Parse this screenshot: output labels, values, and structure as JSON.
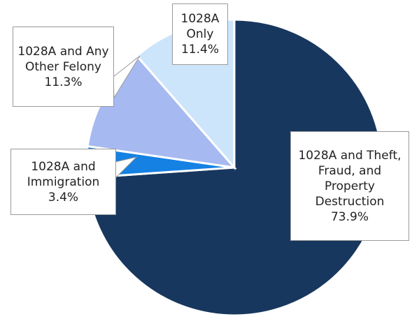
{
  "chart_data": {
    "type": "pie",
    "categories": [
      "1028A and Theft, Fraud, and Property Destruction",
      "1028A and Immigration",
      "1028A and Any Other Felony",
      "1028A Only"
    ],
    "values": [
      73.9,
      3.4,
      11.3,
      11.4
    ],
    "value_labels": [
      "73.9%",
      "3.4%",
      "11.3%",
      "11.4%"
    ],
    "colors": [
      "#17375e",
      "#1581e3",
      "#a6b9f0",
      "#cde5fb"
    ]
  }
}
